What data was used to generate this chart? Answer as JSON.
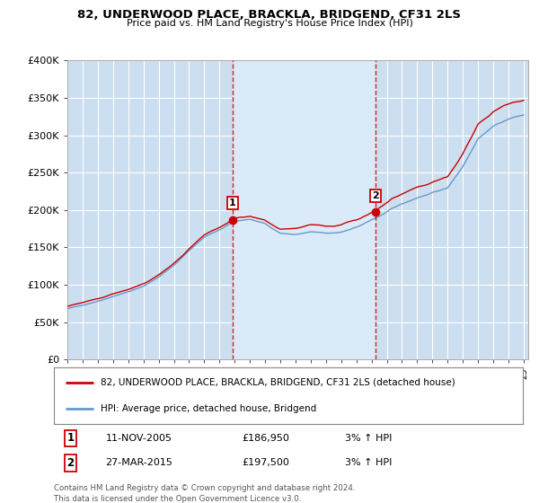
{
  "title": "82, UNDERWOOD PLACE, BRACKLA, BRIDGEND, CF31 2LS",
  "subtitle": "Price paid vs. HM Land Registry's House Price Index (HPI)",
  "plot_bg_color": "#ccdff0",
  "plot_bg_highlight": "#d8eaf8",
  "ylim": [
    0,
    400000
  ],
  "yticks": [
    0,
    50000,
    100000,
    150000,
    200000,
    250000,
    300000,
    350000,
    400000
  ],
  "ytick_labels": [
    "£0",
    "£50K",
    "£100K",
    "£150K",
    "£200K",
    "£250K",
    "£300K",
    "£350K",
    "£400K"
  ],
  "x_start_year": 1995,
  "x_end_year": 2025,
  "purchase1_year": 2005.87,
  "purchase1_price": 186950,
  "purchase1_label": "1",
  "purchase1_date": "11-NOV-2005",
  "purchase1_hpi_pct": "3% ↑ HPI",
  "purchase2_year": 2015.24,
  "purchase2_price": 197500,
  "purchase2_label": "2",
  "purchase2_date": "27-MAR-2015",
  "purchase2_hpi_pct": "3% ↑ HPI",
  "line1_label": "82, UNDERWOOD PLACE, BRACKLA, BRIDGEND, CF31 2LS (detached house)",
  "line2_label": "HPI: Average price, detached house, Bridgend",
  "footer": "Contains HM Land Registry data © Crown copyright and database right 2024.\nThis data is licensed under the Open Government Licence v3.0.",
  "line1_color": "#cc0000",
  "line2_color": "#6699cc",
  "dashed_line_color": "#cc0000",
  "grid_color": "#ffffff",
  "marker_color": "#cc0000",
  "legend_border_color": "#cc0000",
  "hpi_breakpoints_x": [
    1995,
    1996,
    1997,
    1998,
    1999,
    2000,
    2001,
    2002,
    2003,
    2004,
    2005,
    2006,
    2007,
    2008,
    2009,
    2010,
    2011,
    2012,
    2013,
    2014,
    2015,
    2016,
    2017,
    2018,
    2019,
    2020,
    2021,
    2022,
    2023,
    2024,
    2025
  ],
  "hpi_breakpoints_y": [
    68000,
    73000,
    79000,
    86000,
    92000,
    100000,
    112000,
    128000,
    148000,
    165000,
    175000,
    185000,
    188000,
    182000,
    170000,
    168000,
    170000,
    168000,
    170000,
    175000,
    185000,
    195000,
    205000,
    215000,
    222000,
    228000,
    258000,
    298000,
    315000,
    325000,
    330000
  ]
}
